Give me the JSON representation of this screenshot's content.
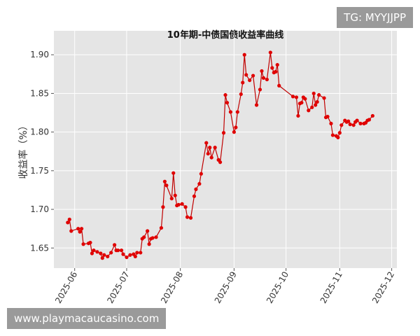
{
  "chart_data": {
    "type": "line",
    "title": "10年期-中债国债收益率曲线",
    "y_label": "收益率（%）",
    "x": [
      "2025-05-28",
      "2025-05-29",
      "2025-05-30",
      "2025-06-03",
      "2025-06-04",
      "2025-06-05",
      "2025-06-06",
      "2025-06-09",
      "2025-06-10",
      "2025-06-11",
      "2025-06-12",
      "2025-06-14",
      "2025-06-16",
      "2025-06-17",
      "2025-06-18",
      "2025-06-20",
      "2025-06-22",
      "2025-06-24",
      "2025-06-25",
      "2025-06-26",
      "2025-06-28",
      "2025-06-29",
      "2025-07-01",
      "2025-07-03",
      "2025-07-05",
      "2025-07-06",
      "2025-07-07",
      "2025-07-09",
      "2025-07-10",
      "2025-07-11",
      "2025-07-13",
      "2025-07-14",
      "2025-07-15",
      "2025-07-16",
      "2025-07-18",
      "2025-07-21",
      "2025-07-22",
      "2025-07-23",
      "2025-07-24",
      "2025-07-27",
      "2025-07-28",
      "2025-07-29",
      "2025-07-30",
      "2025-07-31",
      "2025-08-02",
      "2025-08-04",
      "2025-08-05",
      "2025-08-07",
      "2025-08-09",
      "2025-08-10",
      "2025-08-12",
      "2025-08-13",
      "2025-08-16",
      "2025-08-17",
      "2025-08-18",
      "2025-08-19",
      "2025-08-21",
      "2025-08-23",
      "2025-08-24",
      "2025-08-26",
      "2025-08-27",
      "2025-08-28",
      "2025-08-30",
      "2025-09-01",
      "2025-09-02",
      "2025-09-03",
      "2025-09-05",
      "2025-09-06",
      "2025-09-07",
      "2025-09-08",
      "2025-09-10",
      "2025-09-12",
      "2025-09-14",
      "2025-09-16",
      "2025-09-17",
      "2025-09-18",
      "2025-09-20",
      "2025-09-22",
      "2025-09-23",
      "2025-09-24",
      "2025-09-25",
      "2025-09-26",
      "2025-09-27",
      "2025-10-05",
      "2025-10-07",
      "2025-10-08",
      "2025-10-09",
      "2025-10-10",
      "2025-10-11",
      "2025-10-12",
      "2025-10-14",
      "2025-10-16",
      "2025-10-17",
      "2025-10-18",
      "2025-10-19",
      "2025-10-20",
      "2025-10-23",
      "2025-10-24",
      "2025-10-25",
      "2025-10-27",
      "2025-10-28",
      "2025-10-30",
      "2025-10-31",
      "2025-11-01",
      "2025-11-02",
      "2025-11-04",
      "2025-11-05",
      "2025-11-06",
      "2025-11-07",
      "2025-11-09",
      "2025-11-10",
      "2025-11-11",
      "2025-11-13",
      "2025-11-15",
      "2025-11-16",
      "2025-11-17",
      "2025-11-18",
      "2025-11-20"
    ],
    "values": [
      1.683,
      1.687,
      1.672,
      1.675,
      1.671,
      1.675,
      1.655,
      1.656,
      1.657,
      1.643,
      1.647,
      1.645,
      1.643,
      1.637,
      1.641,
      1.639,
      1.644,
      1.654,
      1.647,
      1.647,
      1.647,
      1.642,
      1.638,
      1.641,
      1.642,
      1.639,
      1.644,
      1.644,
      1.662,
      1.664,
      1.672,
      1.655,
      1.662,
      1.663,
      1.664,
      1.676,
      1.703,
      1.736,
      1.731,
      1.714,
      1.747,
      1.718,
      1.705,
      1.706,
      1.707,
      1.703,
      1.69,
      1.689,
      1.717,
      1.726,
      1.733,
      1.746,
      1.786,
      1.772,
      1.78,
      1.767,
      1.78,
      1.764,
      1.761,
      1.799,
      1.848,
      1.838,
      1.826,
      1.8,
      1.806,
      1.826,
      1.849,
      1.864,
      1.9,
      1.874,
      1.867,
      1.873,
      1.835,
      1.855,
      1.879,
      1.87,
      1.868,
      1.903,
      1.883,
      1.877,
      1.878,
      1.887,
      1.86,
      1.846,
      1.845,
      1.821,
      1.837,
      1.838,
      1.845,
      1.843,
      1.828,
      1.832,
      1.85,
      1.835,
      1.839,
      1.848,
      1.844,
      1.819,
      1.82,
      1.811,
      1.796,
      1.795,
      1.793,
      1.799,
      1.809,
      1.815,
      1.813,
      1.814,
      1.81,
      1.809,
      1.813,
      1.815,
      1.811,
      1.811,
      1.812,
      1.815,
      1.816,
      1.821
    ],
    "color": "#c00000",
    "marker_color": "#e00000",
    "xlim": [
      "2025-05-20",
      "2025-12-04"
    ],
    "xticks": [
      {
        "value": "2025-06-01",
        "label": "2025-06"
      },
      {
        "value": "2025-07-01",
        "label": "2025-07"
      },
      {
        "value": "2025-08-01",
        "label": "2025-08"
      },
      {
        "value": "2025-09-01",
        "label": "2025-09"
      },
      {
        "value": "2025-10-01",
        "label": "2025-10"
      },
      {
        "value": "2025-11-01",
        "label": "2025-11"
      },
      {
        "value": "2025-12-01",
        "label": "2025-12"
      }
    ],
    "ylim": [
      1.624,
      1.931
    ],
    "yticks": [
      1.65,
      {
        "value": 1.7,
        "label": "1.70"
      },
      1.75,
      {
        "value": 1.8,
        "label": "1.80"
      },
      1.85,
      {
        "value": 1.9,
        "label": "1.90"
      }
    ],
    "grid": true
  },
  "watermarks": [
    "TG: MYYJJPP",
    "www.playmacaucasino.com"
  ]
}
